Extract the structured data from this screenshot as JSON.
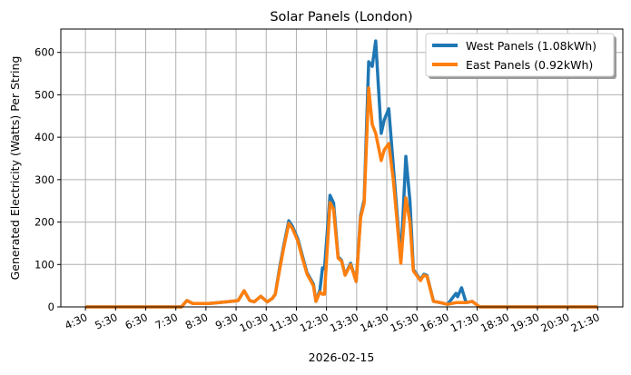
{
  "chart_data": {
    "type": "line",
    "title": "Solar Panels (London)",
    "xlabel": "2026-02-15",
    "ylabel": "Generated Electricity (Watts) Per String",
    "xlim": [
      "3:41",
      "22:20"
    ],
    "ylim": [
      0,
      655
    ],
    "grid": true,
    "legend_position": "top-right",
    "x_ticks": [
      "4:30",
      "5:30",
      "6:30",
      "7:30",
      "8:30",
      "9:30",
      "10:30",
      "11:30",
      "12:30",
      "13:30",
      "14:30",
      "15:30",
      "16:30",
      "17:30",
      "18:30",
      "19:30",
      "20:30",
      "21:30"
    ],
    "y_ticks": [
      0,
      100,
      200,
      300,
      400,
      500,
      600
    ],
    "x": [
      "4:30",
      "7:41",
      "7:52",
      "8:04",
      "8:36",
      "9:12",
      "9:34",
      "9:46",
      "9:57",
      "10:06",
      "10:19",
      "10:32",
      "10:42",
      "10:48",
      "10:57",
      "11:04",
      "11:15",
      "11:22",
      "11:33",
      "11:42",
      "11:51",
      "12:04",
      "12:09",
      "12:17",
      "12:22",
      "12:26",
      "12:37",
      "12:44",
      "12:53",
      "13:00",
      "13:07",
      "13:18",
      "13:29",
      "13:38",
      "13:45",
      "13:54",
      "14:01",
      "14:08",
      "14:19",
      "14:25",
      "14:34",
      "14:43",
      "14:58",
      "15:08",
      "15:16",
      "15:23",
      "15:37",
      "15:44",
      "15:50",
      "16:03",
      "16:17",
      "16:31",
      "16:48",
      "16:51",
      "16:59",
      "17:08",
      "17:20",
      "17:35",
      "21:30"
    ],
    "series": [
      {
        "name": "West Panels (1.08kWh)",
        "color": "#1f77b4",
        "values": [
          0,
          0,
          15,
          8,
          8,
          12,
          15,
          38,
          15,
          12,
          25,
          12,
          20,
          30,
          95,
          140,
          203,
          190,
          160,
          120,
          81,
          54,
          13,
          40,
          92,
          90,
          263,
          245,
          118,
          110,
          75,
          103,
          60,
          216,
          252,
          578,
          567,
          627,
          409,
          441,
          467,
          332,
          109,
          355,
          250,
          88,
          64,
          77,
          74,
          13,
          10,
          6,
          32,
          24,
          45,
          10,
          13,
          0,
          0
        ]
      },
      {
        "name": "East Panels (0.92kWh)",
        "color": "#ff7f0e",
        "values": [
          0,
          0,
          15,
          8,
          8,
          12,
          15,
          38,
          15,
          12,
          25,
          12,
          20,
          30,
          90,
          135,
          197,
          185,
          155,
          115,
          78,
          50,
          13,
          35,
          30,
          30,
          246,
          230,
          115,
          108,
          75,
          100,
          60,
          210,
          245,
          516,
          430,
          409,
          345,
          370,
          385,
          300,
          103,
          257,
          200,
          85,
          62,
          75,
          72,
          13,
          10,
          6,
          10,
          10,
          10,
          10,
          13,
          0,
          0
        ]
      }
    ]
  }
}
